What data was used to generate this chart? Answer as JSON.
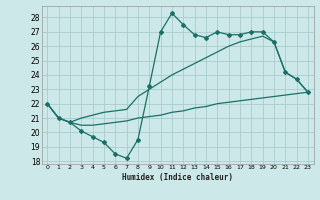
{
  "bg_color": "#cce8e8",
  "grid_color": "#aacccc",
  "line_color": "#1a7068",
  "xlabel": "Humidex (Indice chaleur)",
  "xlim": [
    -0.5,
    23.5
  ],
  "ylim": [
    17.8,
    28.8
  ],
  "xticks": [
    0,
    1,
    2,
    3,
    4,
    5,
    6,
    7,
    8,
    9,
    10,
    11,
    12,
    13,
    14,
    15,
    16,
    17,
    18,
    19,
    20,
    21,
    22,
    23
  ],
  "yticks": [
    18,
    19,
    20,
    21,
    22,
    23,
    24,
    25,
    26,
    27,
    28
  ],
  "line1_x": [
    0,
    1,
    2,
    3,
    4,
    5,
    6,
    7,
    8,
    9,
    10,
    11,
    12,
    13,
    14,
    15,
    16,
    17,
    18,
    19,
    20,
    21,
    22,
    23
  ],
  "line1_y": [
    22.0,
    21.0,
    20.7,
    20.1,
    19.7,
    19.3,
    18.5,
    18.2,
    19.5,
    23.2,
    27.0,
    28.3,
    27.5,
    26.8,
    26.6,
    27.0,
    26.8,
    26.8,
    27.0,
    27.0,
    26.3,
    24.2,
    23.7,
    22.8
  ],
  "line2_x": [
    0,
    1,
    2,
    3,
    4,
    5,
    6,
    7,
    8,
    9,
    10,
    11,
    12,
    13,
    14,
    15,
    16,
    17,
    18,
    19,
    20,
    21,
    22,
    23
  ],
  "line2_y": [
    22.0,
    21.0,
    20.7,
    21.0,
    21.2,
    21.4,
    21.5,
    21.6,
    22.5,
    23.0,
    23.5,
    24.0,
    24.4,
    24.8,
    25.2,
    25.6,
    26.0,
    26.3,
    26.5,
    26.7,
    26.3,
    24.2,
    23.7,
    22.8
  ],
  "line3_x": [
    0,
    1,
    2,
    3,
    4,
    5,
    6,
    7,
    8,
    9,
    10,
    11,
    12,
    13,
    14,
    15,
    16,
    17,
    18,
    19,
    20,
    21,
    22,
    23
  ],
  "line3_y": [
    22.0,
    21.0,
    20.7,
    20.5,
    20.5,
    20.6,
    20.7,
    20.8,
    21.0,
    21.1,
    21.2,
    21.4,
    21.5,
    21.7,
    21.8,
    22.0,
    22.1,
    22.2,
    22.3,
    22.4,
    22.5,
    22.6,
    22.7,
    22.8
  ]
}
